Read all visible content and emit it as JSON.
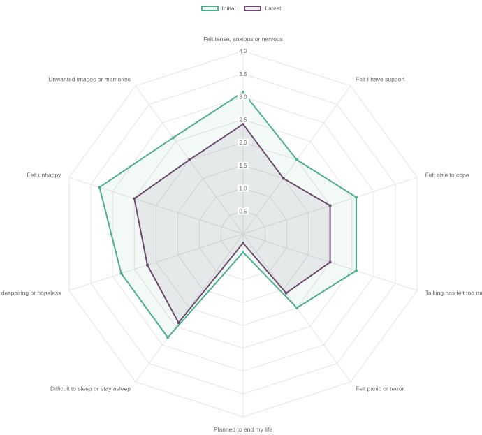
{
  "chart_data": {
    "type": "radar",
    "axes": [
      "Felt tense, anxious or nervous",
      "Felt I have support",
      "Felt able to cope",
      "Talking has felt too much",
      "Felt panic or terror",
      "Planned to end my life",
      "Difficult to sleep or stay asleep",
      "Felt despairing or hopeless",
      "Felt unhappy",
      "Unwanted images or memories"
    ],
    "r_range": [
      0,
      4
    ],
    "ticks": [
      "0.5",
      "1.0",
      "1.5",
      "2.0",
      "2.5",
      "3.0",
      "3.5",
      "4.0"
    ],
    "tick_values": [
      0.5,
      1,
      1.5,
      2,
      2.5,
      3,
      3.5,
      4
    ],
    "series": [
      {
        "name": "Initial",
        "color": "#4daf8a",
        "fill": "rgba(77,175,138,0.07)",
        "values": [
          3.1,
          2.0,
          2.6,
          2.6,
          2.0,
          0.4,
          2.8,
          2.8,
          3.3,
          2.6
        ]
      },
      {
        "name": "Latest",
        "color": "#6b4a6e",
        "fill": "rgba(107,74,110,0.09)",
        "values": [
          2.4,
          1.5,
          2.0,
          2.0,
          1.6,
          0.2,
          2.4,
          2.2,
          2.5,
          2.0
        ]
      }
    ],
    "legend_position": "top"
  }
}
